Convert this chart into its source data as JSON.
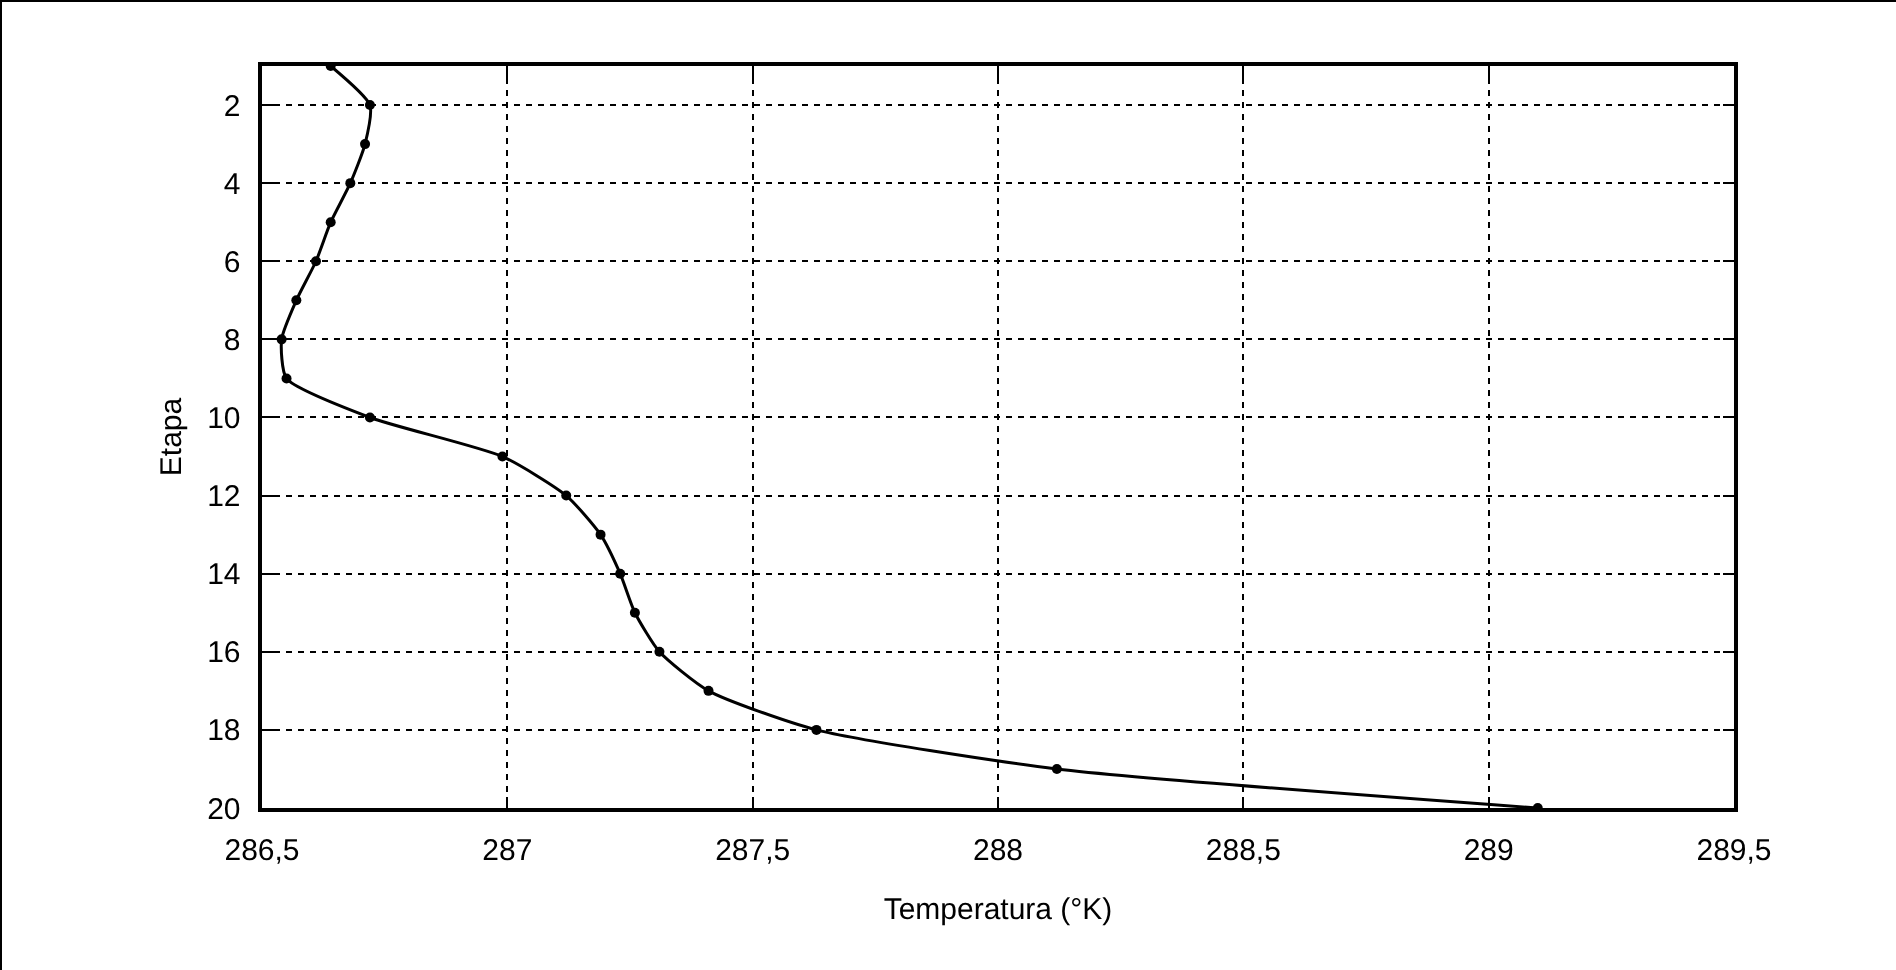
{
  "chart_data": {
    "type": "line",
    "xlabel": "Temperatura (°K)",
    "ylabel": "Etapa",
    "series": [
      {
        "color": "#000000",
        "x": [
          286.64,
          286.72,
          286.71,
          286.68,
          286.64,
          286.61,
          286.57,
          286.54,
          286.55,
          286.72,
          286.99,
          287.12,
          287.19,
          287.23,
          287.26,
          287.31,
          287.41,
          287.63,
          288.12,
          289.1
        ],
        "values": [
          1,
          2,
          3,
          4,
          5,
          6,
          7,
          8,
          9,
          10,
          11,
          12,
          13,
          14,
          15,
          16,
          17,
          18,
          19,
          20
        ]
      }
    ],
    "xlim": [
      286.5,
      289.5
    ],
    "xticks": [
      {
        "value": 286.5,
        "label": "286,5"
      },
      287,
      {
        "value": 287.5,
        "label": "287,5"
      },
      288,
      {
        "value": 288.5,
        "label": "288,5"
      },
      289,
      {
        "value": 289.5,
        "label": "289,5"
      }
    ],
    "ylim": [
      20,
      1
    ],
    "yticks": [
      2,
      4,
      6,
      8,
      10,
      12,
      14,
      16,
      18,
      20
    ],
    "grid": true,
    "marker": "circle",
    "line_style": "solid"
  }
}
